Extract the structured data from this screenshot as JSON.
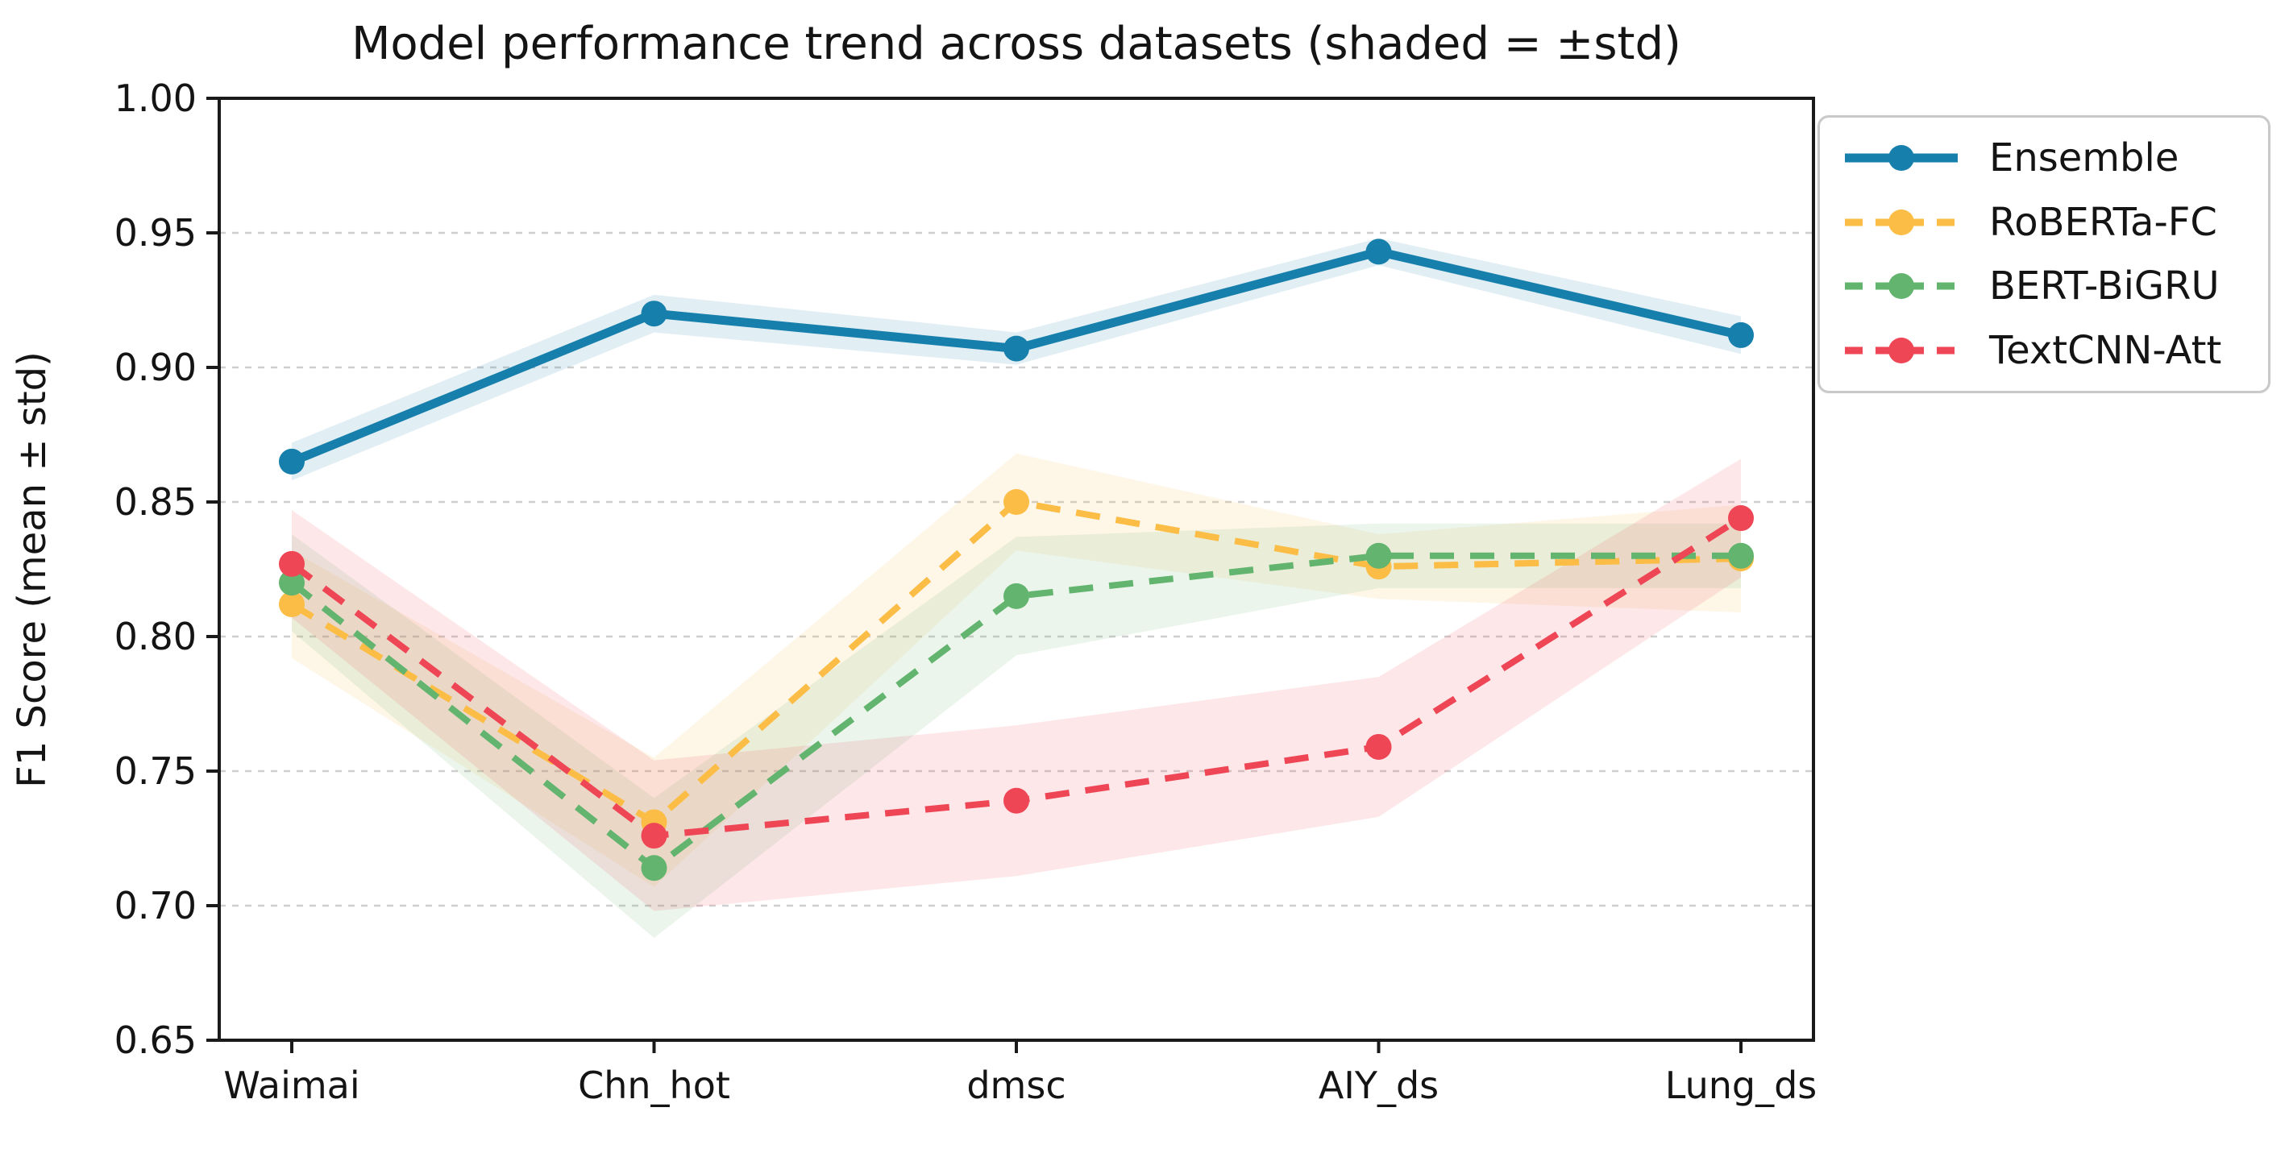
{
  "chart_data": {
    "type": "line",
    "title": "Model performance trend across datasets (shaded = ±std)",
    "xlabel": "",
    "ylabel": "F1 Score (mean ± std)",
    "categories": [
      "Waimai",
      "Chn_hot",
      "dmsc",
      "AIY_ds",
      "Lung_ds"
    ],
    "ylim": [
      0.65,
      1.0
    ],
    "yticks": [
      "0.65",
      "0.70",
      "0.75",
      "0.80",
      "0.85",
      "0.90",
      "0.95",
      "1.00"
    ],
    "grid": "horizontal-dashed",
    "grid_color": "#cfcfcf",
    "legend_position": "upper right",
    "shaded_band_meaning": "±std",
    "band_opacity": 0.13,
    "series": [
      {
        "name": "Ensemble",
        "color": "#177fab",
        "line_style": "solid",
        "marker": "circle",
        "values": [
          0.865,
          0.92,
          0.907,
          0.943,
          0.912
        ],
        "std": [
          0.007,
          0.007,
          0.006,
          0.005,
          0.007
        ]
      },
      {
        "name": "RoBERTa-FC",
        "color": "#fbbd46",
        "line_style": "dashed",
        "marker": "circle",
        "values": [
          0.812,
          0.731,
          0.85,
          0.826,
          0.829
        ],
        "std": [
          0.02,
          0.024,
          0.018,
          0.012,
          0.02
        ]
      },
      {
        "name": "BERT-BiGRU",
        "color": "#62b46e",
        "line_style": "dashed",
        "marker": "circle",
        "values": [
          0.82,
          0.714,
          0.815,
          0.83,
          0.83
        ],
        "std": [
          0.018,
          0.026,
          0.022,
          0.012,
          0.012
        ]
      },
      {
        "name": "TextCNN-Att",
        "color": "#ef4656",
        "line_style": "dashed",
        "marker": "circle",
        "values": [
          0.827,
          0.726,
          0.739,
          0.759,
          0.844
        ],
        "std": [
          0.02,
          0.028,
          0.028,
          0.026,
          0.022
        ]
      }
    ]
  }
}
